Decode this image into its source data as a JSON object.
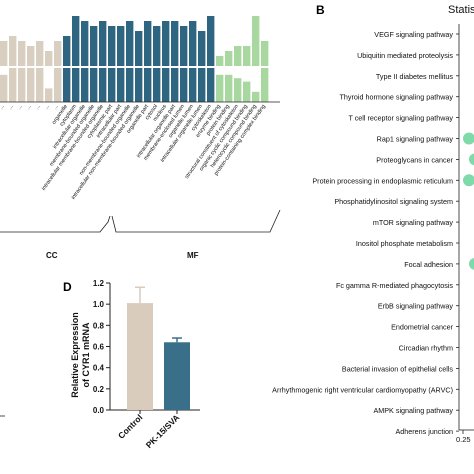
{
  "panels": {
    "b": "B",
    "d": "D"
  },
  "colors": {
    "cc": "#2e6580",
    "mf": "#a8d8a0",
    "bp": "#d9cfc1",
    "control_bar": "#d9ccbc",
    "treated_bar": "#3a6f8a",
    "dot": "#7fd9a8"
  },
  "chart_data": [
    {
      "type": "bar",
      "panel": "A (partial)",
      "group_labels": [
        "CC",
        "MF"
      ],
      "upper_values": [
        5,
        6,
        5,
        4,
        5,
        3,
        5,
        6,
        10,
        9,
        8,
        9,
        8,
        8,
        9,
        7,
        9,
        8,
        9,
        9,
        8,
        9,
        7,
        10,
        2,
        3,
        4,
        4,
        10,
        5
      ],
      "lower_values": [
        8,
        10,
        10,
        10,
        10,
        4,
        10,
        10,
        10,
        10,
        10,
        10,
        10,
        10,
        10,
        10,
        10,
        10,
        10,
        10,
        10,
        10,
        10,
        10,
        8,
        8,
        7,
        6,
        3,
        10
      ],
      "tick_labels": [
        "...",
        "...",
        "...",
        "...",
        "...",
        "...",
        "...",
        "organelle",
        "cytoplasm",
        "intracellular organelle",
        "membrane-bounded organelle",
        "intracellular membrane-bounded organelle",
        "cytoplasmic part",
        "intracellular part",
        "non-membrane-bounded organelle",
        "intracellular non-membrane-bounded organelle",
        "organelle part",
        "cytosol",
        "nucleus",
        "intracellular organelle part",
        "membrane-enclosed lumen",
        "organelle lumen",
        "intracellular organelle lumen",
        "cytoskeleton",
        "enzyme binding",
        "protein binding",
        "structural constituent of cytoskeleton",
        "organic cyclic compound binding",
        "heterocyclic compound binding",
        "protein-containing complex binding"
      ]
    },
    {
      "type": "scatter",
      "panel": "B",
      "title": "Statis",
      "categories": [
        "VEGF signaling pathway",
        "Ubiquitin mediated proteolysis",
        "Type II diabetes mellitus",
        "Thyroid hormone signaling pathway",
        "T cell receptor signaling pathway",
        "Rap1 signaling pathway",
        "Proteoglycans in cancer",
        "Protein processing in endoplasmic reticulum",
        "Phosphatidylinositol signaling system",
        "mTOR signaling pathway",
        "Inositol phosphate metabolism",
        "Focal adhesion",
        "Fc gamma R-mediated phagocytosis",
        "ErbB signaling pathway",
        "Endometrial cancer",
        "Circadian rhythm",
        "Bacterial invasion of epithelial cells",
        "Arrhythmogenic right ventricular cardiomyopathy (ARVC)",
        "AMPK signaling pathway",
        "Adherens junction"
      ],
      "points": [
        {
          "pathway": "Rap1 signaling pathway",
          "x": 0.26
        },
        {
          "pathway": "Proteoglycans in cancer",
          "x": 0.27
        },
        {
          "pathway": "Protein processing in endoplasmic reticulum",
          "x": 0.26
        },
        {
          "pathway": "Focal adhesion",
          "x": 0.27
        }
      ],
      "xticks": [
        "0.25"
      ]
    },
    {
      "type": "bar",
      "panel": "D",
      "categories": [
        "Control",
        "PK-15/SVA"
      ],
      "values": [
        1.01,
        0.64
      ],
      "errors": [
        0.15,
        0.04
      ],
      "ylabel": "Relative Expression of CYR1 mRNA",
      "ylim": [
        0,
        1.2
      ],
      "yticks": [
        "0.0",
        "0.2",
        "0.4",
        "0.6",
        "0.8",
        "1.0",
        "1.2"
      ]
    }
  ]
}
